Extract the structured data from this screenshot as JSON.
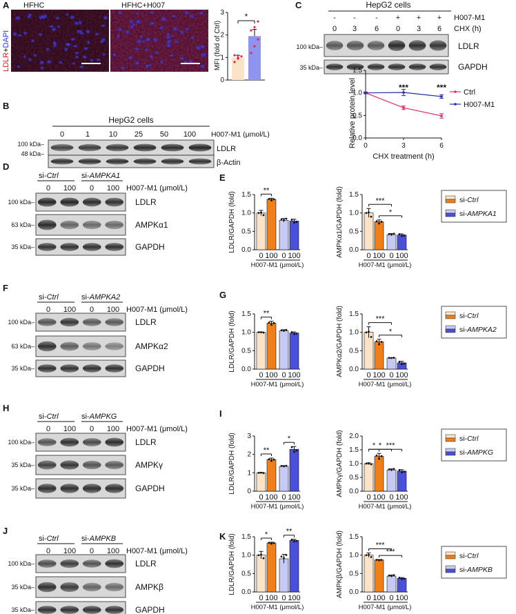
{
  "figure": {
    "panel_letters": [
      "A",
      "B",
      "C",
      "D",
      "E",
      "F",
      "G",
      "H",
      "I",
      "J",
      "K"
    ],
    "colors": {
      "ctrl_light": "#fbe3c7",
      "ctrl_dark": "#f07f1a",
      "si_light": "#c6c9f4",
      "si_dark": "#4a50d8",
      "ctrl_line": "#e8266b",
      "h007_line": "#1f2fa8",
      "mfi_ctrl": "#fbe3c7",
      "mfi_h007": "#8f95ee",
      "dot_red": "#e8224a"
    },
    "panel_A": {
      "image_titles": [
        "HFHC",
        "HFHC+H007"
      ],
      "stain_label_ldlr": "LDLR",
      "stain_label_plus": "+",
      "stain_label_dapi": "DAPI",
      "ylabel": "MFI (fold of Ctrl)",
      "yticks": [
        "0",
        "1",
        "2",
        "3"
      ],
      "sig": "*"
    },
    "panel_B": {
      "header": "HepG2 cells",
      "doses": [
        "0",
        "1",
        "10",
        "25",
        "50",
        "100"
      ],
      "dose_label": "H007-M1 (μmol/L)",
      "markers": [
        "100 kDa",
        "48 kDa"
      ],
      "band_labels": [
        "LDLR",
        "β-Actin"
      ]
    },
    "panel_C": {
      "header": "HepG2 cells",
      "row_labels": [
        "H007-M1",
        "CHX (h)"
      ],
      "signs": [
        "-",
        "-",
        "-",
        "+",
        "+",
        "+"
      ],
      "chx": [
        "0",
        "3",
        "6",
        "0",
        "3",
        "6"
      ],
      "markers": [
        "100 kDa",
        "35 kDa"
      ],
      "band_labels": [
        "LDLR",
        "GAPDH"
      ],
      "ylabel": "Relative protein level",
      "xlabel": "CHX treatment (h)",
      "yticks": [
        "0.0",
        "0.5",
        "1.0",
        "1.5"
      ],
      "xticks": [
        "0",
        "3",
        "6"
      ],
      "sig": [
        "***",
        "***"
      ],
      "legend": [
        "Ctrl",
        "H007-M1"
      ]
    },
    "blot_rows": {
      "D": {
        "si_ctrl_prefix": "si-",
        "si_ctrl": "Ctrl",
        "si_target_prefix": "si-",
        "si_target": "AMPKA1",
        "doses": [
          "0",
          "100",
          "0",
          "100"
        ],
        "dose_label": "H007-M1 (μmol/L)",
        "markers": [
          "100 kDa",
          "63 kDa",
          "35 kDa"
        ],
        "band_labels": [
          "LDLR",
          "AMPKα1",
          "GAPDH"
        ]
      },
      "F": {
        "si_ctrl_prefix": "si-",
        "si_ctrl": "Ctrl",
        "si_target_prefix": "si-",
        "si_target": "AMPKA2",
        "doses": [
          "0",
          "100",
          "0",
          "100"
        ],
        "dose_label": "H007-M1 (μmol/L)",
        "markers": [
          "100 kDa",
          "63 kDa",
          "35 kDa"
        ],
        "band_labels": [
          "LDLR",
          "AMPKα2",
          "GAPDH"
        ]
      },
      "H": {
        "si_ctrl_prefix": "si-",
        "si_ctrl": "Ctrl",
        "si_target_prefix": "si-",
        "si_target": "AMPKG",
        "doses": [
          "0",
          "100",
          "0",
          "100"
        ],
        "dose_label": "H007-M1 (μmol/L)",
        "markers": [
          "100 kDa",
          "35 kDa",
          "35 kDa"
        ],
        "band_labels": [
          "LDLR",
          "AMPKγ",
          "GAPDH"
        ]
      },
      "J": {
        "si_ctrl_prefix": "si-",
        "si_ctrl": "Ctrl",
        "si_target_prefix": "si-",
        "si_target": "AMPKB",
        "doses": [
          "0",
          "100",
          "0",
          "100"
        ],
        "dose_label": "H007-M1 (μmol/L)",
        "markers": [
          "100 kDa",
          "35 kDa",
          "35 kDa"
        ],
        "band_labels": [
          "LDLR",
          "AMPKβ",
          "GAPDH"
        ]
      }
    },
    "bar_xticks": [
      "0",
      "100",
      "0",
      "100"
    ],
    "bar_xlabel": "H007-M1 (μmol/L)",
    "legends": {
      "E": [
        "si-Ctrl",
        "si-AMPKA1"
      ],
      "G": [
        "si-Ctrl",
        "si-AMPKA2"
      ],
      "I": [
        "si-Ctrl",
        "si-AMPKG"
      ],
      "K": [
        "si-Ctrl",
        "si-AMPKB"
      ]
    }
  },
  "chart_data": [
    {
      "id": "A-mfi",
      "type": "bar",
      "categories": [
        "HFHC",
        "HFHC+H007"
      ],
      "values": [
        1.0,
        1.95
      ],
      "errors": [
        0.1,
        0.3
      ],
      "points": [
        [
          0.8,
          1.0,
          1.05,
          1.1,
          0.95
        ],
        [
          1.2,
          1.5,
          1.8,
          2.2,
          2.35,
          2.6
        ]
      ],
      "ylabel": "MFI (fold of Ctrl)",
      "ylim": [
        0,
        3
      ],
      "sig": [
        {
          "a": 0,
          "b": 1,
          "label": "*"
        }
      ]
    },
    {
      "id": "C-line",
      "type": "line",
      "x": [
        0,
        3,
        6
      ],
      "series": [
        {
          "name": "Ctrl",
          "values": [
            1.0,
            0.67,
            0.49
          ],
          "errors": [
            0.02,
            0.04,
            0.05
          ]
        },
        {
          "name": "H007-M1",
          "values": [
            1.0,
            1.01,
            0.92
          ],
          "errors": [
            0.02,
            0.07,
            0.04
          ]
        }
      ],
      "xlabel": "CHX treatment (h)",
      "ylabel": "Relative protein level",
      "ylim": [
        0,
        1.5
      ],
      "annotations": [
        "***",
        "***"
      ]
    },
    {
      "id": "E-left",
      "type": "bar",
      "categories": [
        "0",
        "100",
        "0",
        "100"
      ],
      "values": [
        1.0,
        1.37,
        0.8,
        0.78
      ],
      "errors": [
        0.07,
        0.03,
        0.05,
        0.05
      ],
      "ylabel": "LDLR/GAPDH (fold)",
      "ylim": [
        0,
        1.5
      ],
      "yticks": [
        0,
        0.5,
        1.0,
        1.5
      ],
      "sig": [
        {
          "a": 0,
          "b": 1,
          "label": "**"
        }
      ]
    },
    {
      "id": "E-right",
      "type": "bar",
      "categories": [
        "0",
        "100",
        "0",
        "100"
      ],
      "values": [
        1.0,
        0.76,
        0.41,
        0.4
      ],
      "errors": [
        0.12,
        0.05,
        0.03,
        0.03
      ],
      "ylabel": "AMPKα1/GAPDH (fold)",
      "ylim": [
        0,
        1.5
      ],
      "yticks": [
        0,
        0.5,
        1.0,
        1.5
      ],
      "sig": [
        {
          "a": 0,
          "b": 2,
          "label": "***"
        },
        {
          "a": 1,
          "b": 3,
          "label": "*"
        }
      ]
    },
    {
      "id": "G-left",
      "type": "bar",
      "categories": [
        "0",
        "100",
        "0",
        "100"
      ],
      "values": [
        1.0,
        1.25,
        1.04,
        0.98
      ],
      "errors": [
        0.01,
        0.05,
        0.03,
        0.03
      ],
      "ylabel": "LDLR/GAPDH (fold)",
      "ylim": [
        0,
        1.5
      ],
      "yticks": [
        0,
        0.5,
        1.0,
        1.5
      ],
      "sig": [
        {
          "a": 0,
          "b": 1,
          "label": "**"
        }
      ]
    },
    {
      "id": "G-right",
      "type": "bar",
      "categories": [
        "0",
        "100",
        "0",
        "100"
      ],
      "values": [
        1.0,
        0.74,
        0.3,
        0.17
      ],
      "errors": [
        0.15,
        0.07,
        0.01,
        0.04
      ],
      "ylabel": "AMPKα2/GAPDH (fold)",
      "ylim": [
        0,
        1.5
      ],
      "yticks": [
        0,
        0.5,
        1.0,
        1.5
      ],
      "sig": [
        {
          "a": 0,
          "b": 2,
          "label": "***"
        },
        {
          "a": 1,
          "b": 3,
          "label": "*"
        }
      ]
    },
    {
      "id": "I-left",
      "type": "bar",
      "categories": [
        "0",
        "100",
        "0",
        "100"
      ],
      "values": [
        1.0,
        1.72,
        1.35,
        2.28
      ],
      "errors": [
        0.02,
        0.08,
        0.04,
        0.15
      ],
      "ylabel": "LDLR/GAPDH (fold)",
      "ylim": [
        0,
        3
      ],
      "yticks": [
        0,
        1,
        2,
        3
      ],
      "sig": [
        {
          "a": 0,
          "b": 1,
          "label": "**"
        },
        {
          "a": 2,
          "b": 3,
          "label": "*"
        }
      ]
    },
    {
      "id": "I-right",
      "type": "bar",
      "categories": [
        "0",
        "100",
        "0",
        "100"
      ],
      "values": [
        1.0,
        1.27,
        0.77,
        0.73
      ],
      "errors": [
        0.03,
        0.1,
        0.04,
        0.05
      ],
      "ylabel": "AMPKγ/GAPDH (fold)",
      "ylim": [
        0,
        2.0
      ],
      "yticks": [
        0,
        0.5,
        1.0,
        1.5,
        2.0
      ],
      "sig": [
        {
          "a": 0,
          "b": 1,
          "label": "*"
        },
        {
          "a": 1,
          "b": 3,
          "label": "***"
        },
        {
          "a": 0,
          "b": 2,
          "label": "*"
        }
      ]
    },
    {
      "id": "K-left",
      "type": "bar",
      "categories": [
        "0",
        "100",
        "0",
        "100"
      ],
      "values": [
        1.0,
        1.33,
        0.9,
        1.4
      ],
      "errors": [
        0.1,
        0.02,
        0.12,
        0.03
      ],
      "ylabel": "LDLR/GAPDH (fold)",
      "ylim": [
        0,
        1.5
      ],
      "yticks": [
        0,
        0.5,
        1.0,
        1.5
      ],
      "sig": [
        {
          "a": 0,
          "b": 1,
          "label": "*"
        },
        {
          "a": 2,
          "b": 3,
          "label": "**"
        }
      ]
    },
    {
      "id": "K-right",
      "type": "bar",
      "categories": [
        "0",
        "100",
        "0",
        "100"
      ],
      "values": [
        1.0,
        0.87,
        0.43,
        0.37
      ],
      "errors": [
        0.06,
        0.01,
        0.03,
        0.02
      ],
      "ylabel": "AMPKβ/GAPDH (fold)",
      "ylim": [
        0,
        1.5
      ],
      "yticks": [
        0,
        0.5,
        1.0,
        1.5
      ],
      "sig": [
        {
          "a": 0,
          "b": 2,
          "label": "***"
        },
        {
          "a": 1,
          "b": 3,
          "label": "***"
        }
      ]
    }
  ]
}
